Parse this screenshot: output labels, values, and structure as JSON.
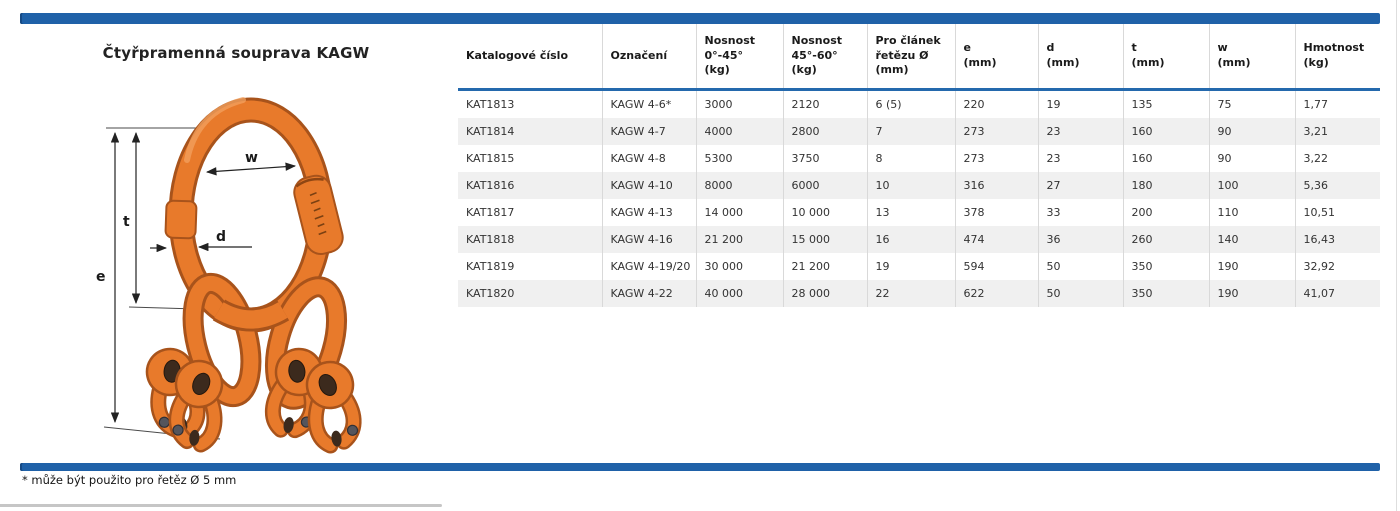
{
  "page": {
    "title": "Čtyřpramenná souprava KAGW",
    "footnote": "* může být použito pro řetěz Ø 5 mm"
  },
  "colors": {
    "accent_blue": "#1f61a8",
    "header_rule_blue": "#2469ad",
    "alt_row_gray": "#f0f0f0",
    "product_orange": "#e87a2b"
  },
  "diagram": {
    "labels": {
      "w": "w",
      "t": "t",
      "d": "d",
      "e": "e"
    }
  },
  "table": {
    "headers": [
      {
        "lines": [
          "Katalogové číslo"
        ]
      },
      {
        "lines": [
          "Označení"
        ]
      },
      {
        "lines": [
          "Nosnost",
          "0°-45°",
          "(kg)"
        ]
      },
      {
        "lines": [
          "Nosnost",
          "45°-60°",
          "(kg)"
        ]
      },
      {
        "lines": [
          "Pro článek",
          "řetězu Ø",
          "(mm)"
        ]
      },
      {
        "lines": [
          "e",
          "(mm)"
        ]
      },
      {
        "lines": [
          "d",
          "(mm)"
        ]
      },
      {
        "lines": [
          "t",
          "(mm)"
        ]
      },
      {
        "lines": [
          "w",
          "(mm)"
        ]
      },
      {
        "lines": [
          "Hmotnost",
          "(kg)"
        ]
      }
    ],
    "rows": [
      [
        "KAT1813",
        "KAGW 4-6*",
        "3000",
        "2120",
        "6 (5)",
        "220",
        "19",
        "135",
        "75",
        "1,77"
      ],
      [
        "KAT1814",
        "KAGW 4-7",
        "4000",
        "2800",
        "7",
        "273",
        "23",
        "160",
        "90",
        "3,21"
      ],
      [
        "KAT1815",
        "KAGW 4-8",
        "5300",
        "3750",
        "8",
        "273",
        "23",
        "160",
        "90",
        "3,22"
      ],
      [
        "KAT1816",
        "KAGW 4-10",
        "8000",
        "6000",
        "10",
        "316",
        "27",
        "180",
        "100",
        "5,36"
      ],
      [
        "KAT1817",
        "KAGW 4-13",
        "14 000",
        "10 000",
        "13",
        "378",
        "33",
        "200",
        "110",
        "10,51"
      ],
      [
        "KAT1818",
        "KAGW 4-16",
        "21 200",
        "15 000",
        "16",
        "474",
        "36",
        "260",
        "140",
        "16,43"
      ],
      [
        "KAT1819",
        "KAGW 4-19/20",
        "30 000",
        "21 200",
        "19",
        "594",
        "50",
        "350",
        "190",
        "32,92"
      ],
      [
        "KAT1820",
        "KAGW 4-22",
        "40 000",
        "28 000",
        "22",
        "622",
        "50",
        "350",
        "190",
        "41,07"
      ]
    ]
  }
}
